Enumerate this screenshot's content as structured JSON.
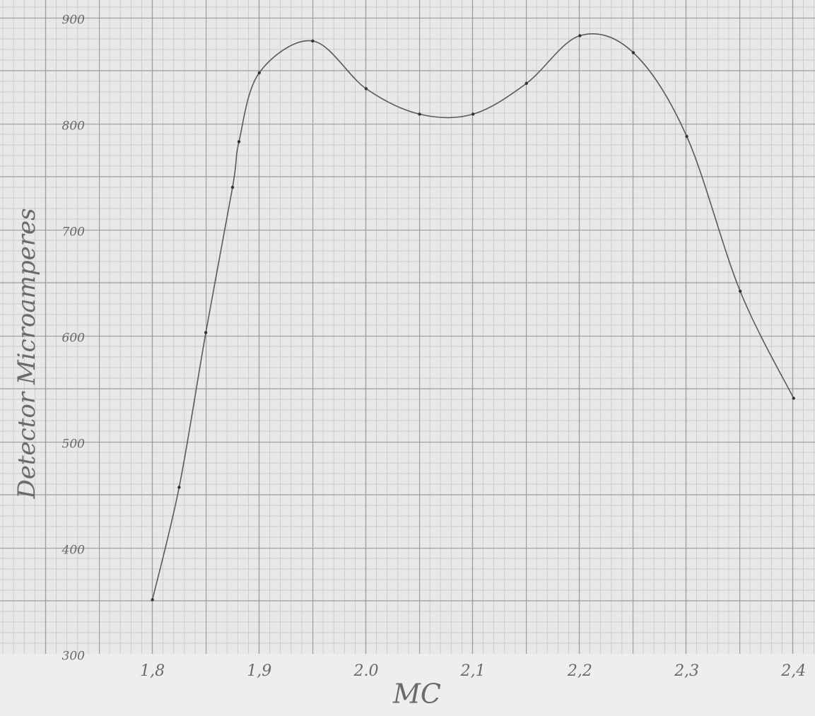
{
  "chart_data": {
    "type": "line",
    "x_label": "MC",
    "y_label": "Detector Microamperes",
    "x": [
      1.8,
      1.825,
      1.85,
      1.875,
      1.881,
      1.9,
      1.95,
      2.0,
      2.05,
      2.1,
      2.15,
      2.2,
      2.25,
      2.3,
      2.35,
      2.4
    ],
    "values": [
      351,
      457,
      603,
      740,
      783,
      848,
      878,
      833,
      809,
      809,
      838,
      883,
      867,
      788,
      642,
      541
    ],
    "color": "#5a5a5a",
    "xlim": [
      1.75,
      2.42
    ],
    "ylim": [
      300,
      900
    ],
    "xticks": [
      {
        "value": 1.8,
        "label": "1,8"
      },
      {
        "value": 1.9,
        "label": "1,9"
      },
      {
        "value": 2.0,
        "label": "2.0"
      },
      {
        "value": 2.1,
        "label": "2,1"
      },
      {
        "value": 2.2,
        "label": "2,2"
      },
      {
        "value": 2.3,
        "label": "2,3"
      },
      {
        "value": 2.4,
        "label": "2,4"
      }
    ],
    "yticks": [
      300,
      400,
      500,
      600,
      700,
      800,
      900
    ]
  }
}
